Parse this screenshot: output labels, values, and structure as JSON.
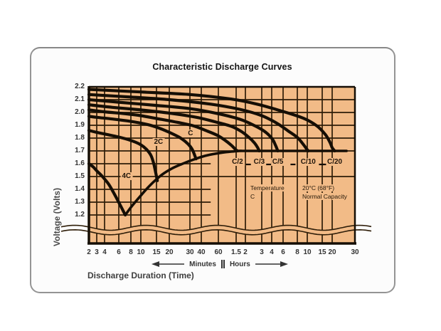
{
  "figure": {
    "title": "Characteristic Discharge Curves"
  },
  "colors": {
    "plot_background": "#f2bb87",
    "grid": "#2e1d08",
    "curve": "#150e05",
    "axis_text": "#333333",
    "card_border": "#949494"
  },
  "chart_data": {
    "type": "line",
    "title": "Characteristic Discharge Curves",
    "xlabel": "Discharge Duration (Time)",
    "ylabel": "Voltage (Volts)",
    "x_scale": "log",
    "x_unit_split": {
      "left": "Minutes",
      "right": "Hours",
      "split_at_minutes": 60
    },
    "ylim": [
      1.2,
      2.2
    ],
    "grid": true,
    "y_ticks": [
      "2.2",
      "2.1",
      "2.0",
      "1.9",
      "1.8",
      "1.7",
      "1.6",
      "1.5",
      "1.4",
      "1.3",
      "1.2"
    ],
    "x_ticks_minutes": [
      "2",
      "3",
      "4",
      "6",
      "8",
      "10",
      "15",
      "20",
      "30",
      "40",
      "60"
    ],
    "x_ticks_hours": [
      "1.5",
      "2",
      "3",
      "4",
      "6",
      "8",
      "10",
      "15",
      "20",
      "30"
    ],
    "axis_break": {
      "below_voltage": 1.2,
      "style": "double-wave"
    },
    "legend": {
      "rows": [
        [
          "Temperature",
          "20°C (68°F)"
        ],
        [
          "C",
          "Normal Capacity"
        ]
      ]
    },
    "series": [
      {
        "name": "C/20",
        "row_label": true,
        "points": [
          [
            2,
            2.18
          ],
          [
            10,
            2.16
          ],
          [
            30,
            2.14
          ],
          [
            80,
            2.105
          ],
          [
            160,
            2.065
          ],
          [
            320,
            2.015
          ],
          [
            550,
            1.955
          ],
          [
            780,
            1.895
          ],
          [
            980,
            1.83
          ],
          [
            1120,
            1.77
          ],
          [
            1200,
            1.725
          ],
          [
            1255,
            1.7
          ]
        ]
      },
      {
        "name": "C/10",
        "row_label": true,
        "points": [
          [
            2,
            2.14
          ],
          [
            8,
            2.12
          ],
          [
            20,
            2.1
          ],
          [
            50,
            2.065
          ],
          [
            100,
            2.025
          ],
          [
            180,
            1.975
          ],
          [
            290,
            1.915
          ],
          [
            400,
            1.855
          ],
          [
            480,
            1.805
          ],
          [
            550,
            1.75
          ],
          [
            595,
            1.712
          ],
          [
            615,
            1.7
          ]
        ]
      },
      {
        "name": "C/5",
        "row_label": true,
        "points": [
          [
            2,
            2.1
          ],
          [
            6,
            2.08
          ],
          [
            15,
            2.055
          ],
          [
            30,
            2.03
          ],
          [
            60,
            1.99
          ],
          [
            100,
            1.948
          ],
          [
            150,
            1.898
          ],
          [
            200,
            1.848
          ],
          [
            245,
            1.793
          ],
          [
            275,
            1.743
          ],
          [
            298,
            1.7
          ]
        ]
      },
      {
        "name": "C/3",
        "row_label": true,
        "points": [
          [
            2,
            2.06
          ],
          [
            5,
            2.04
          ],
          [
            10,
            2.02
          ],
          [
            20,
            1.995
          ],
          [
            35,
            1.963
          ],
          [
            55,
            1.928
          ],
          [
            80,
            1.893
          ],
          [
            105,
            1.853
          ],
          [
            130,
            1.808
          ],
          [
            150,
            1.763
          ],
          [
            162,
            1.728
          ],
          [
            169,
            1.7
          ]
        ]
      },
      {
        "name": "C/2",
        "row_label": true,
        "points": [
          [
            2,
            2.02
          ],
          [
            4,
            2.005
          ],
          [
            7,
            1.99
          ],
          [
            10,
            1.975
          ],
          [
            15,
            1.953
          ],
          [
            22,
            1.928
          ],
          [
            32,
            1.898
          ],
          [
            45,
            1.858
          ],
          [
            58,
            1.823
          ],
          [
            70,
            1.783
          ],
          [
            81,
            1.743
          ],
          [
            89,
            1.71
          ],
          [
            94,
            1.7
          ]
        ]
      },
      {
        "name": "C",
        "label_at": [
          30.5,
          1.832
        ],
        "points": [
          [
            2,
            1.97
          ],
          [
            3,
            1.962
          ],
          [
            5,
            1.949
          ],
          [
            8,
            1.93
          ],
          [
            12,
            1.905
          ],
          [
            16,
            1.877
          ],
          [
            20,
            1.845
          ],
          [
            25,
            1.8
          ],
          [
            29,
            1.753
          ],
          [
            32,
            1.708
          ],
          [
            35,
            1.638
          ]
        ]
      },
      {
        "name": "2C",
        "label_at": [
          15.7,
          1.765
        ],
        "points": [
          [
            2,
            1.86
          ],
          [
            3,
            1.845
          ],
          [
            4,
            1.832
          ],
          [
            5.5,
            1.814
          ],
          [
            7,
            1.795
          ],
          [
            8.5,
            1.774
          ],
          [
            10,
            1.748
          ],
          [
            11.5,
            1.714
          ],
          [
            13,
            1.665
          ],
          [
            14,
            1.598
          ],
          [
            14.8,
            1.52
          ],
          [
            15.3,
            1.468
          ]
        ]
      },
      {
        "name": "4C",
        "label_at": [
          7.2,
          1.5
        ],
        "points": [
          [
            2,
            1.6
          ],
          [
            2.5,
            1.575
          ],
          [
            3,
            1.545
          ],
          [
            3.7,
            1.5
          ],
          [
            4.5,
            1.44
          ],
          [
            5.3,
            1.362
          ],
          [
            6.2,
            1.278
          ],
          [
            7,
            1.2
          ]
        ]
      }
    ],
    "cutoff_envelope": {
      "name": "final-discharge-voltage-line",
      "points": [
        [
          7,
          1.2
        ],
        [
          8.2,
          1.27
        ],
        [
          9.6,
          1.335
        ],
        [
          11.5,
          1.4
        ],
        [
          14,
          1.46
        ],
        [
          17,
          1.515
        ],
        [
          21,
          1.562
        ],
        [
          26,
          1.6
        ],
        [
          33,
          1.633
        ],
        [
          42,
          1.658
        ],
        [
          55,
          1.677
        ],
        [
          70,
          1.69
        ],
        [
          88,
          1.697
        ],
        [
          105,
          1.7
        ],
        [
          130,
          1.7
        ],
        [
          1550,
          1.7
        ]
      ]
    }
  }
}
